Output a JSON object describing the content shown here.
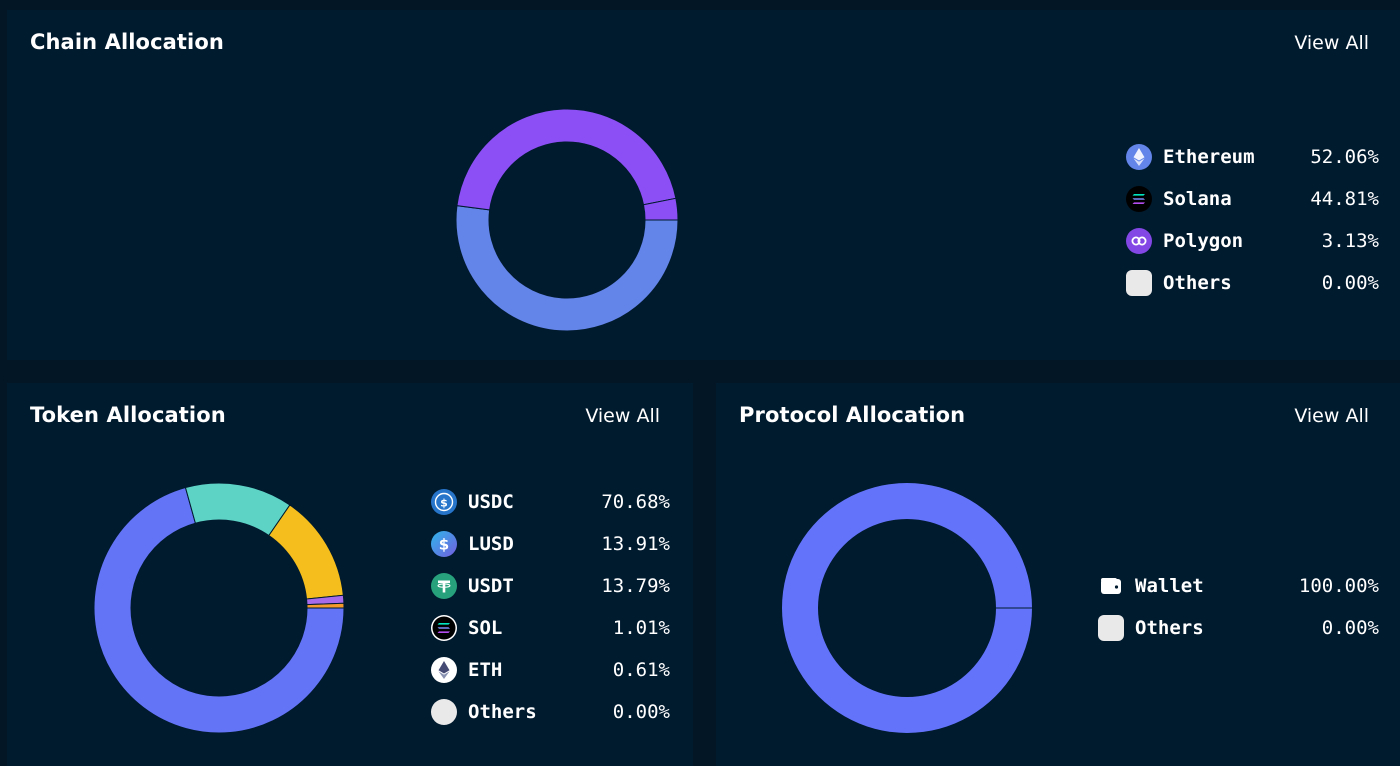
{
  "colors": {
    "page_bg": "#031626",
    "panel_bg": "#001a2e",
    "ethereum": "#6384e8",
    "solana": "#8c4ff5",
    "polygon": "#8c4ff5",
    "usdc": "#6374f7",
    "lusd": "#5dd3c6",
    "usdt": "#f5be1c",
    "sol": "#a66bea",
    "eth": "#f39a2a",
    "wallet": "#6374fb",
    "others": "#e9e9e9"
  },
  "chain": {
    "title": "Chain Allocation",
    "view_all": "View All",
    "legend": [
      {
        "name": "Ethereum",
        "value": "52.06%",
        "icon": "ethereum-icon"
      },
      {
        "name": "Solana",
        "value": "44.81%",
        "icon": "solana-icon"
      },
      {
        "name": "Polygon",
        "value": "3.13%",
        "icon": "polygon-icon"
      },
      {
        "name": "Others",
        "value": "0.00%",
        "icon": "others-dot-icon"
      }
    ]
  },
  "token": {
    "title": "Token Allocation",
    "view_all": "View All",
    "legend": [
      {
        "name": "USDC",
        "value": "70.68%",
        "icon": "usdc-icon"
      },
      {
        "name": "LUSD",
        "value": "13.91%",
        "icon": "lusd-icon"
      },
      {
        "name": "USDT",
        "value": "13.79%",
        "icon": "usdt-icon"
      },
      {
        "name": "SOL",
        "value": "1.01%",
        "icon": "sol-icon"
      },
      {
        "name": "ETH",
        "value": "0.61%",
        "icon": "eth-icon"
      },
      {
        "name": "Others",
        "value": "0.00%",
        "icon": "others-dot-icon"
      }
    ]
  },
  "protocol": {
    "title": "Protocol Allocation",
    "view_all": "View All",
    "legend": [
      {
        "name": "Wallet",
        "value": "100.00%",
        "icon": "wallet-icon"
      },
      {
        "name": "Others",
        "value": "0.00%",
        "icon": "others-dot-icon"
      }
    ]
  },
  "chart_data": [
    {
      "type": "pie",
      "title": "Chain Allocation",
      "categories": [
        "Ethereum",
        "Solana",
        "Polygon",
        "Others"
      ],
      "values": [
        52.06,
        44.81,
        3.13,
        0.0
      ],
      "colors": [
        "#6384e8",
        "#8c4ff5",
        "#8c4ff5",
        "#e9e9e9"
      ],
      "legend": "right"
    },
    {
      "type": "pie",
      "title": "Token Allocation",
      "categories": [
        "USDC",
        "LUSD",
        "USDT",
        "SOL",
        "ETH",
        "Others"
      ],
      "values": [
        70.68,
        13.91,
        13.79,
        1.01,
        0.61,
        0.0
      ],
      "colors": [
        "#6374f7",
        "#5dd3c6",
        "#f5be1c",
        "#a66bea",
        "#f39a2a",
        "#e9e9e9"
      ],
      "legend": "right"
    },
    {
      "type": "pie",
      "title": "Protocol Allocation",
      "categories": [
        "Wallet",
        "Others"
      ],
      "values": [
        100.0,
        0.0
      ],
      "colors": [
        "#6374fb",
        "#e9e9e9"
      ],
      "legend": "right"
    }
  ]
}
